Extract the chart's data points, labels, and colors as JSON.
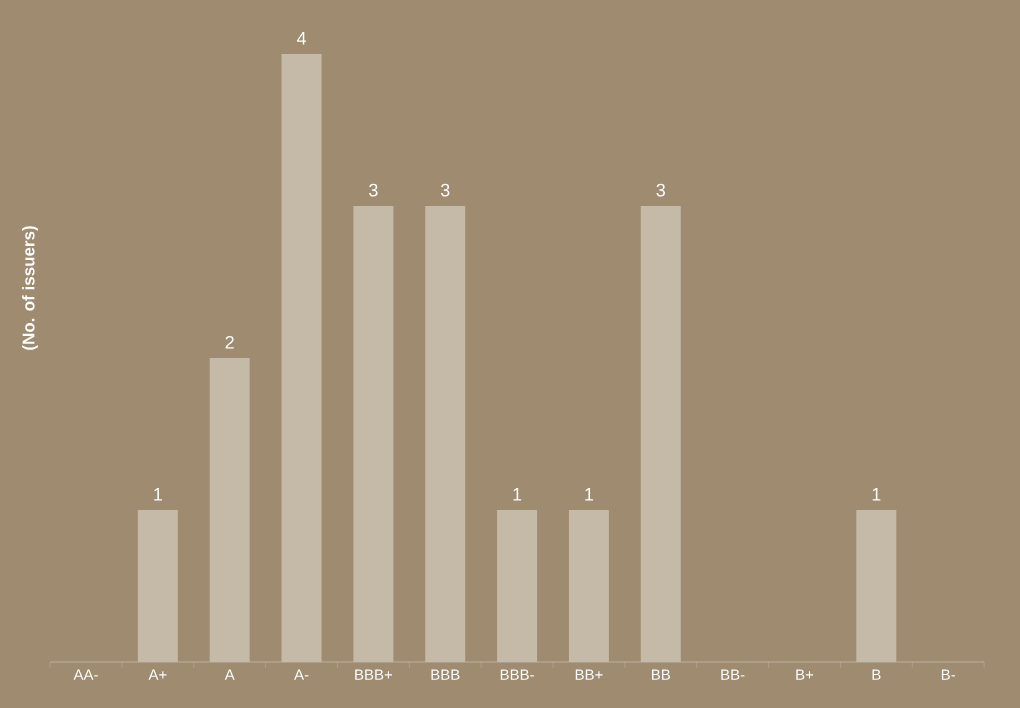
{
  "chart_data": {
    "type": "bar",
    "ylabel": "(No. of issuers)",
    "categories": [
      "AA-",
      "A+",
      "A",
      "A-",
      "BBB+",
      "BBB",
      "BBB-",
      "BB+",
      "BB",
      "BB-",
      "B+",
      "B",
      "B-"
    ],
    "values": [
      0,
      1,
      2,
      4,
      3,
      3,
      1,
      1,
      3,
      0,
      0,
      1,
      0
    ],
    "value_labels": [
      null,
      "1",
      "2",
      "4",
      "3",
      "3",
      "1",
      "1",
      "3",
      null,
      null,
      "1",
      null
    ],
    "color": "#c5baa7",
    "legend": false
  }
}
